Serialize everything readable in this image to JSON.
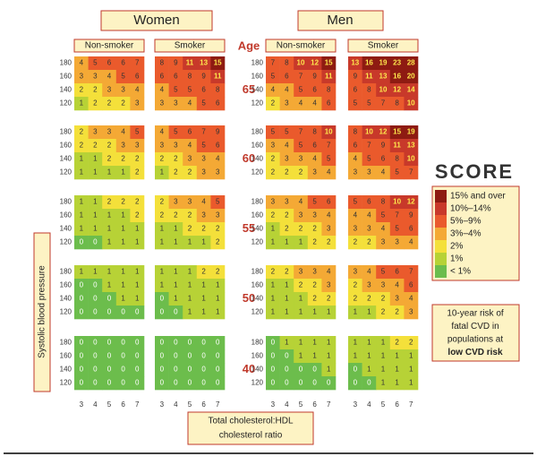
{
  "chart_data": {
    "type": "heatmap",
    "sexes": [
      "Women",
      "Men"
    ],
    "smoking": [
      "Non-smoker",
      "Smoker"
    ],
    "age_label": "Age",
    "ages": [
      65,
      60,
      55,
      50,
      40
    ],
    "sbp": [
      180,
      160,
      140,
      120
    ],
    "ratios": [
      3,
      4,
      5,
      6,
      7
    ],
    "y_label": "Systolic blood pressure",
    "x_label": [
      "Total cholesterol:HDL",
      "cholesterol ratio"
    ],
    "logo": "SCORE",
    "legend": [
      {
        "label": "15% and over",
        "from": 15,
        "color": "#8e1b12"
      },
      {
        "label": "10%–14%",
        "from": 10,
        "color": "#c8392a"
      },
      {
        "label": "5%–9%",
        "from": 5,
        "color": "#ea5a2c"
      },
      {
        "label": "3%–4%",
        "from": 3,
        "color": "#f4a935"
      },
      {
        "label": "2%",
        "from": 2,
        "color": "#f4e03a"
      },
      {
        "label": "1%",
        "from": 1,
        "color": "#b7d236"
      },
      {
        "label": "< 1%",
        "color": "#6cbd4c"
      }
    ],
    "note": [
      "10-year risk of",
      "fatal CVD in",
      "populations at",
      "low CVD risk"
    ],
    "values": [
      [
        [
          [
            4,
            5,
            6,
            6,
            7
          ],
          [
            3,
            3,
            4,
            5,
            6
          ],
          [
            2,
            2,
            3,
            3,
            4
          ],
          [
            1,
            2,
            2,
            2,
            3
          ]
        ],
        [
          [
            8,
            9,
            11,
            13,
            15
          ],
          [
            6,
            6,
            8,
            9,
            11
          ],
          [
            4,
            5,
            5,
            6,
            8
          ],
          [
            3,
            3,
            4,
            5,
            6
          ]
        ],
        [
          [
            7,
            8,
            10,
            12,
            15
          ],
          [
            5,
            6,
            7,
            9,
            11
          ],
          [
            4,
            4,
            5,
            6,
            8
          ],
          [
            2,
            3,
            4,
            4,
            6
          ]
        ],
        [
          [
            13,
            16,
            19,
            23,
            28
          ],
          [
            9,
            11,
            13,
            16,
            20
          ],
          [
            6,
            8,
            10,
            12,
            14
          ],
          [
            5,
            5,
            7,
            8,
            10
          ]
        ]
      ],
      [
        [
          [
            2,
            3,
            3,
            4,
            5
          ],
          [
            2,
            2,
            2,
            3,
            3
          ],
          [
            1,
            1,
            2,
            2,
            2
          ],
          [
            1,
            1,
            1,
            1,
            2
          ]
        ],
        [
          [
            4,
            5,
            6,
            7,
            9
          ],
          [
            3,
            3,
            4,
            5,
            6
          ],
          [
            2,
            2,
            3,
            3,
            4
          ],
          [
            1,
            2,
            2,
            3,
            3
          ]
        ],
        [
          [
            5,
            5,
            7,
            8,
            10
          ],
          [
            3,
            4,
            5,
            6,
            7
          ],
          [
            2,
            3,
            3,
            4,
            5
          ],
          [
            2,
            2,
            2,
            3,
            4
          ]
        ],
        [
          [
            8,
            10,
            12,
            15,
            19
          ],
          [
            6,
            7,
            9,
            11,
            13
          ],
          [
            4,
            5,
            6,
            8,
            10
          ],
          [
            3,
            3,
            4,
            5,
            7
          ]
        ]
      ],
      [
        [
          [
            1,
            1,
            2,
            2,
            2
          ],
          [
            1,
            1,
            1,
            1,
            2
          ],
          [
            1,
            1,
            1,
            1,
            1
          ],
          [
            0,
            0,
            1,
            1,
            1
          ]
        ],
        [
          [
            2,
            3,
            3,
            4,
            5
          ],
          [
            2,
            2,
            2,
            3,
            3
          ],
          [
            1,
            1,
            2,
            2,
            2
          ],
          [
            1,
            1,
            1,
            1,
            2
          ]
        ],
        [
          [
            3,
            3,
            4,
            5,
            6
          ],
          [
            2,
            2,
            3,
            3,
            4
          ],
          [
            1,
            2,
            2,
            2,
            3
          ],
          [
            1,
            1,
            1,
            2,
            2
          ]
        ],
        [
          [
            5,
            6,
            8,
            10,
            12
          ],
          [
            4,
            4,
            5,
            7,
            9
          ],
          [
            3,
            3,
            4,
            5,
            6
          ],
          [
            2,
            2,
            3,
            3,
            4
          ]
        ]
      ],
      [
        [
          [
            1,
            1,
            1,
            1,
            1
          ],
          [
            0,
            0,
            1,
            1,
            1
          ],
          [
            0,
            0,
            0,
            1,
            1
          ],
          [
            0,
            0,
            0,
            0,
            0
          ]
        ],
        [
          [
            1,
            1,
            1,
            2,
            2
          ],
          [
            1,
            1,
            1,
            1,
            1
          ],
          [
            0,
            1,
            1,
            1,
            1
          ],
          [
            0,
            0,
            1,
            1,
            1
          ]
        ],
        [
          [
            2,
            2,
            3,
            3,
            4
          ],
          [
            1,
            1,
            2,
            2,
            3
          ],
          [
            1,
            1,
            1,
            2,
            2
          ],
          [
            1,
            1,
            1,
            1,
            1
          ]
        ],
        [
          [
            3,
            4,
            5,
            6,
            7
          ],
          [
            2,
            3,
            3,
            4,
            6
          ],
          [
            2,
            2,
            2,
            3,
            4
          ],
          [
            1,
            1,
            2,
            2,
            3
          ]
        ]
      ],
      [
        [
          [
            0,
            0,
            0,
            0,
            0
          ],
          [
            0,
            0,
            0,
            0,
            0
          ],
          [
            0,
            0,
            0,
            0,
            0
          ],
          [
            0,
            0,
            0,
            0,
            0
          ]
        ],
        [
          [
            0,
            0,
            0,
            0,
            0
          ],
          [
            0,
            0,
            0,
            0,
            0
          ],
          [
            0,
            0,
            0,
            0,
            0
          ],
          [
            0,
            0,
            0,
            0,
            0
          ]
        ],
        [
          [
            0,
            1,
            1,
            1,
            1
          ],
          [
            0,
            0,
            1,
            1,
            1
          ],
          [
            0,
            0,
            0,
            0,
            1
          ],
          [
            0,
            0,
            0,
            0,
            0
          ]
        ],
        [
          [
            1,
            1,
            1,
            2,
            2
          ],
          [
            1,
            1,
            1,
            1,
            1
          ],
          [
            0,
            1,
            1,
            1,
            1
          ],
          [
            0,
            0,
            1,
            1,
            1
          ]
        ]
      ]
    ]
  }
}
